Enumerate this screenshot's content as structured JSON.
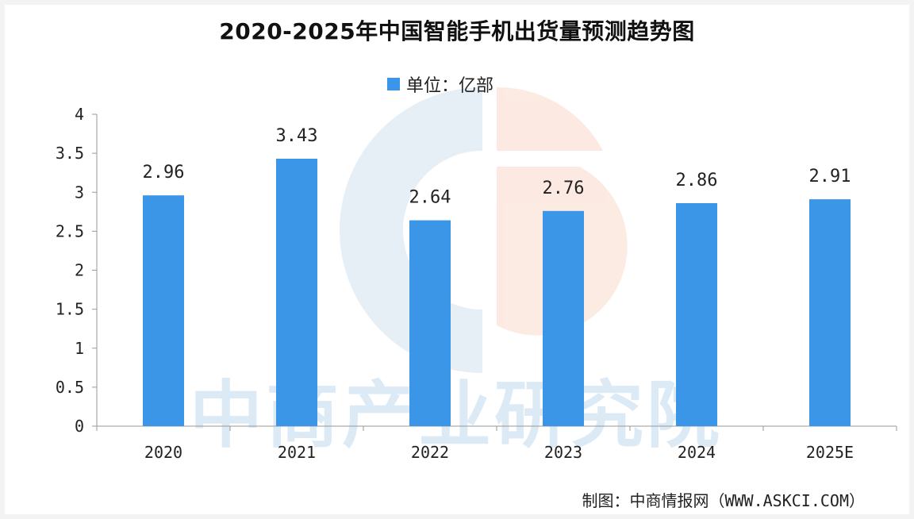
{
  "chart_data": {
    "type": "bar",
    "title": "2020-2025年中国智能手机出货量预测趋势图",
    "legend": {
      "label": "单位：亿部",
      "position": "top-center"
    },
    "categories": [
      "2020",
      "2021",
      "2022",
      "2023",
      "2024",
      "2025E"
    ],
    "series": [
      {
        "name": "单位：亿部",
        "values": [
          2.96,
          3.43,
          2.64,
          2.76,
          2.86,
          2.91
        ]
      }
    ],
    "data_labels": [
      "2.96",
      "3.43",
      "2.64",
      "2.76",
      "2.86",
      "2.91"
    ],
    "y_ticks": [
      "0",
      "0.5",
      "1",
      "1.5",
      "2",
      "2.5",
      "3",
      "3.5",
      "4"
    ],
    "ylim": [
      0,
      4
    ],
    "grid": false,
    "bar_color": "#3b96e8"
  },
  "watermark": "中商产业研究院",
  "source": "制图：中商情报网（WWW.ASKCI.COM）"
}
